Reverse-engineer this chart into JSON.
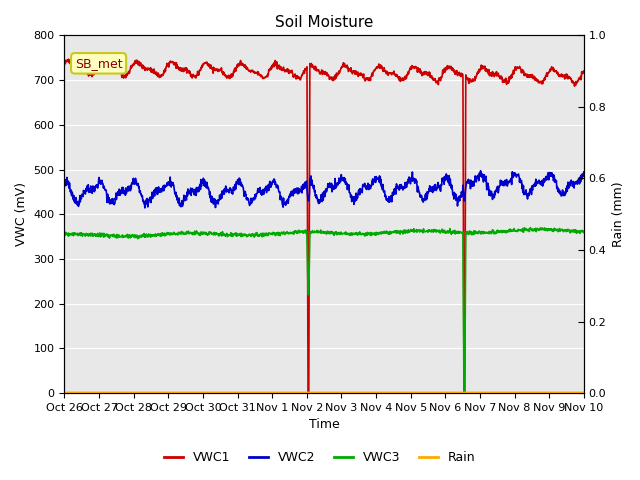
{
  "title": "Soil Moisture",
  "xlabel": "Time",
  "ylabel_left": "VWC (mV)",
  "ylabel_right": "Rain (mm)",
  "ylim_left": [
    0,
    800
  ],
  "ylim_right": [
    0,
    1.0
  ],
  "yticks_left": [
    0,
    100,
    200,
    300,
    400,
    500,
    600,
    700,
    800
  ],
  "yticks_right": [
    0.0,
    0.2,
    0.4,
    0.6,
    0.8,
    1.0
  ],
  "x_tick_labels": [
    "Oct 26",
    "Oct 27",
    "Oct 28",
    "Oct 29",
    "Oct 30",
    "Oct 31",
    "Nov 1",
    "Nov 2",
    "Nov 3",
    "Nov 4",
    "Nov 5",
    "Nov 6",
    "Nov 7",
    "Nov 8",
    "Nov 9",
    "Nov 10"
  ],
  "annotation_label": "SB_met",
  "vwc1_color": "#cc0000",
  "vwc2_color": "#0000cc",
  "vwc3_color": "#00aa00",
  "rain_color": "#ffaa00",
  "bg_color": "#e8e8e8",
  "spike1_day": 7.0,
  "spike2_day": 11.5,
  "vwc1_base": 728,
  "vwc2_base": 450,
  "vwc3_base": 352,
  "title_fontsize": 11,
  "axis_fontsize": 9,
  "tick_fontsize": 8
}
